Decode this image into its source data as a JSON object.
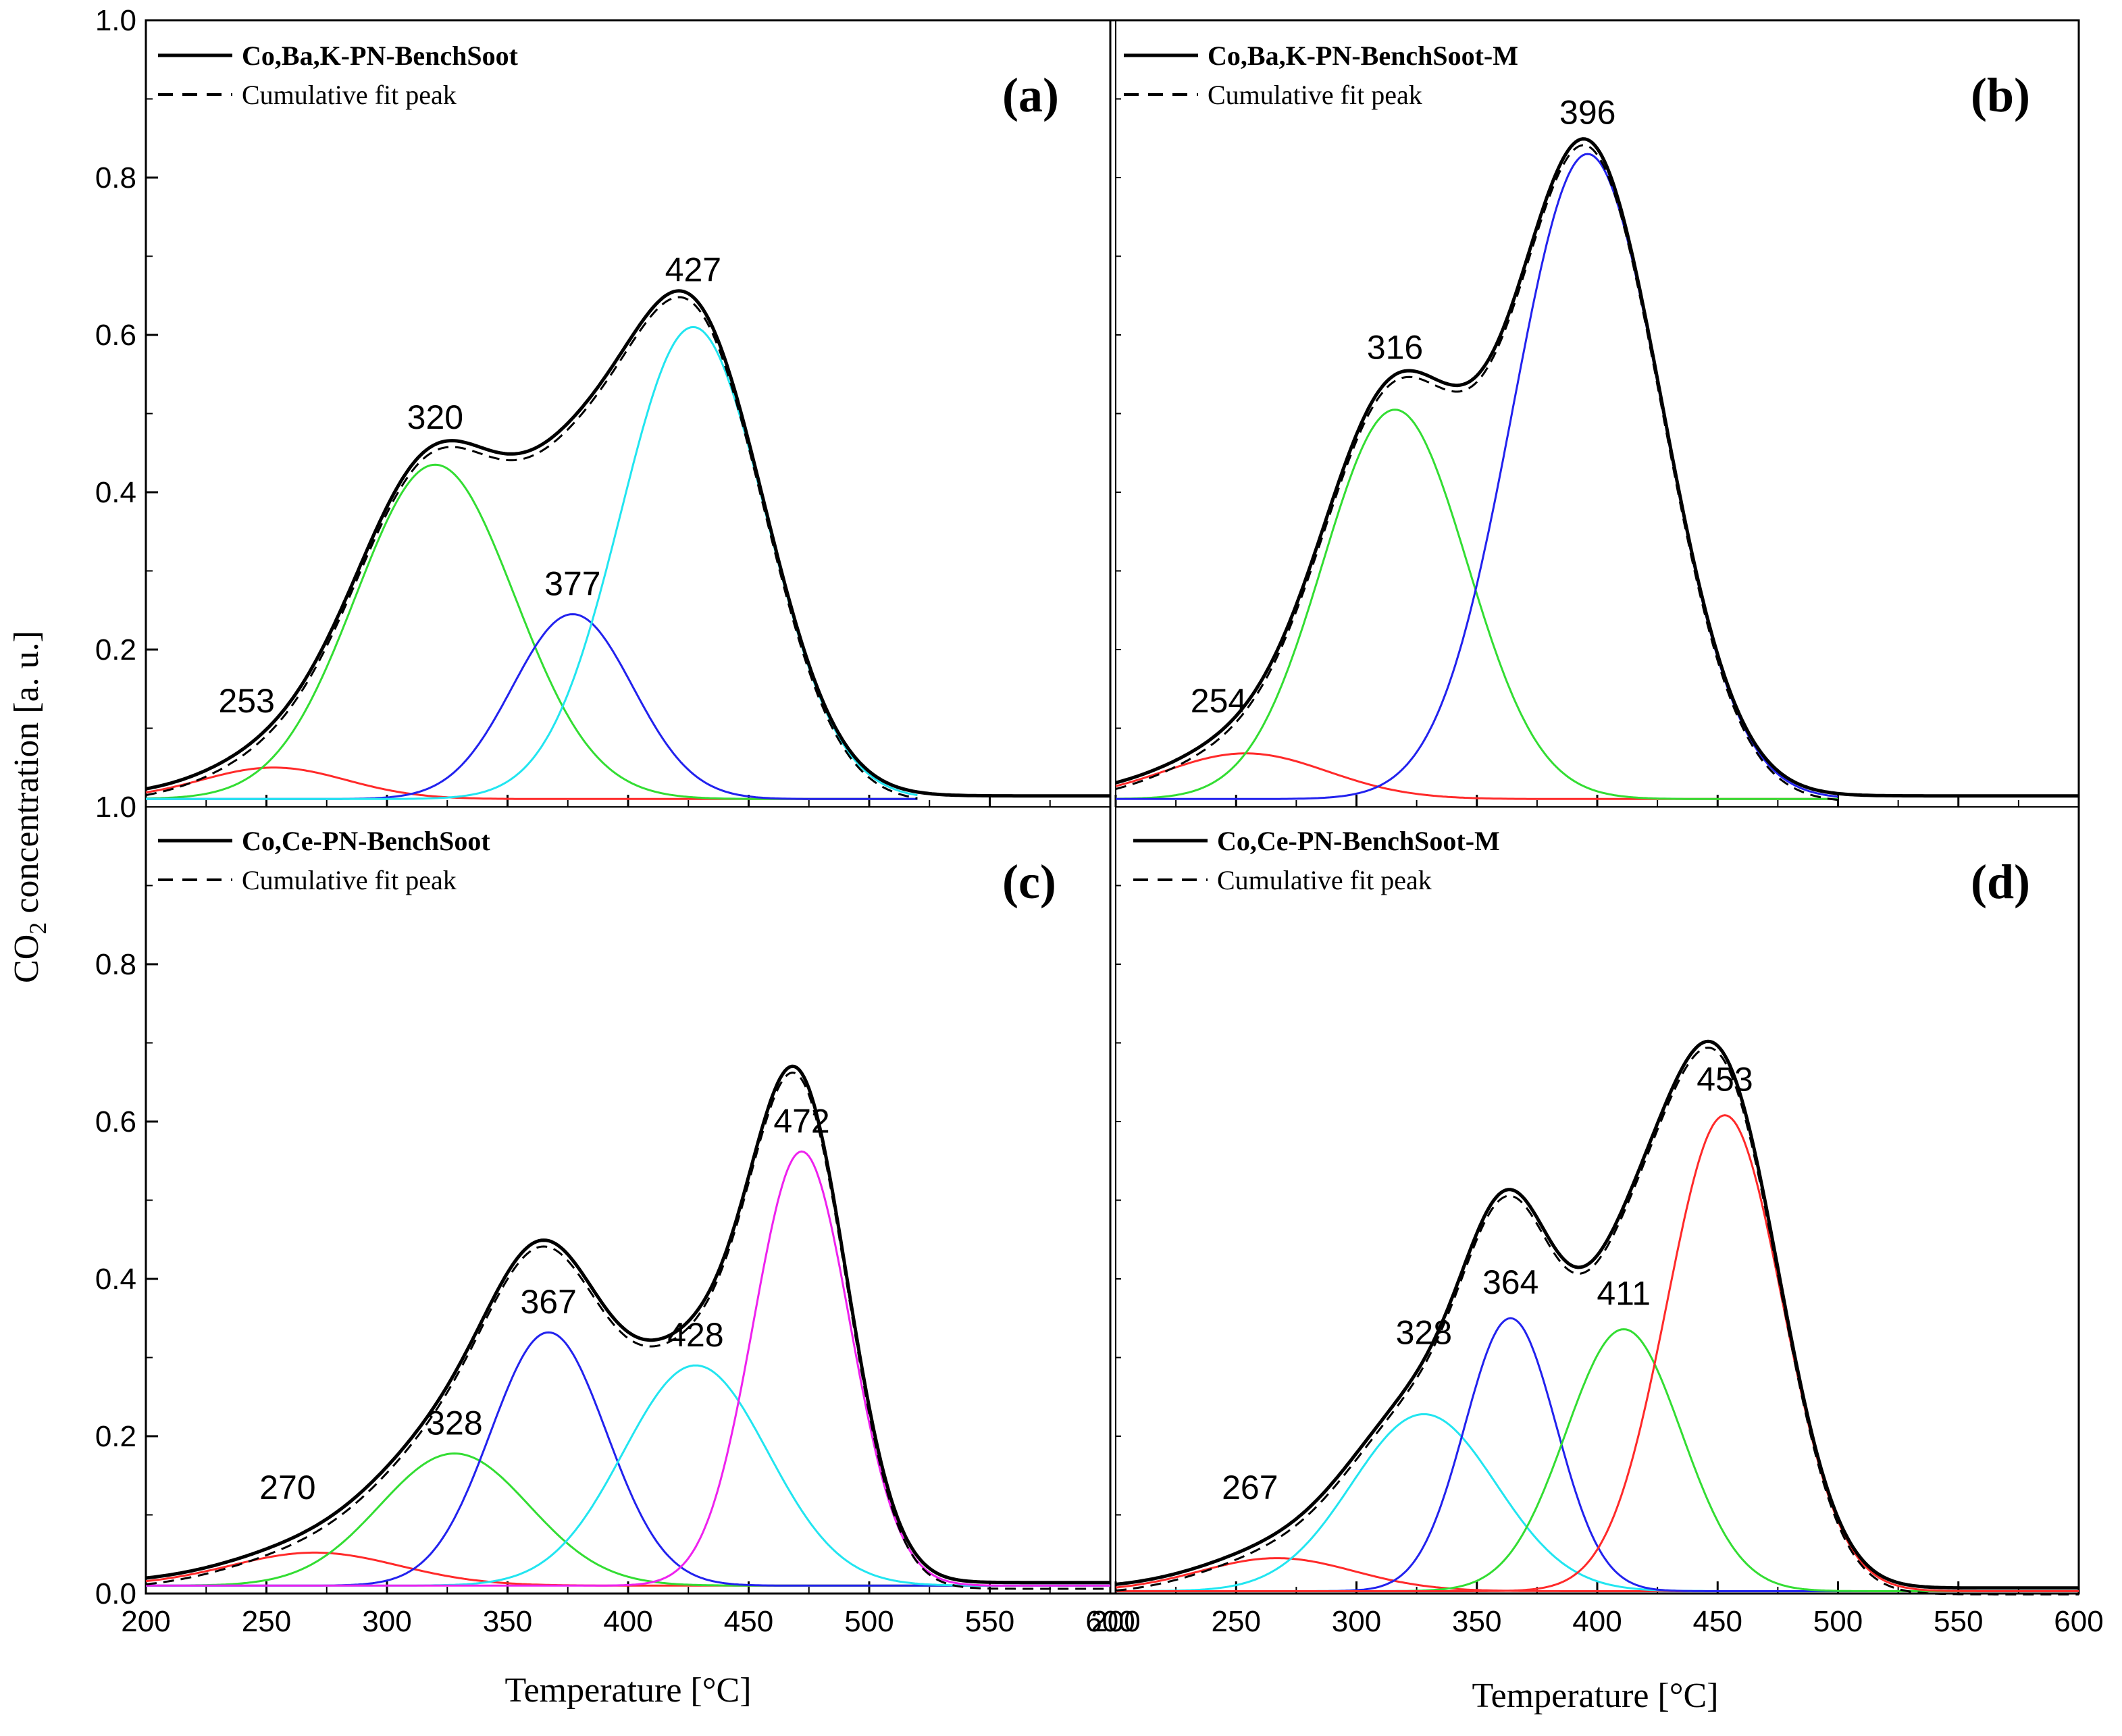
{
  "chart_data": {
    "type": "line",
    "ylabel_main": "CO",
    "ylabel_sub": "2",
    "ylabel_rest": " concentration [a. u.]",
    "xlabel": "Temperature [°C]",
    "xlim": [
      200,
      600
    ],
    "ylim": [
      0.0,
      1.0
    ],
    "xticks": [
      "200",
      "250",
      "300",
      "350",
      "400",
      "450",
      "500",
      "550",
      "600"
    ],
    "yticks_left": [
      "0.0",
      "0.2",
      "0.4",
      "0.6",
      "0.8",
      "1.0"
    ],
    "ytick_top_left_panel_bottom": "1.0",
    "colors": {
      "red": "#ff2a2a",
      "green": "#33dd33",
      "blue": "#2222ee",
      "cyan": "#22e5f0",
      "magenta": "#ee22ee",
      "black": "#000000"
    },
    "panels": [
      {
        "id": "a",
        "label": "(a)",
        "legend": [
          "Co,Ba,K-PN-BenchSoot",
          "Cumulative fit peak"
        ],
        "baseline": 0.01,
        "peaks": [
          {
            "center": 253,
            "height": 0.04,
            "sigma": 30,
            "color": "red",
            "label": "253"
          },
          {
            "center": 320,
            "height": 0.425,
            "sigma": 33,
            "color": "green",
            "label": "320"
          },
          {
            "center": 377,
            "height": 0.235,
            "sigma": 25,
            "color": "blue",
            "label": "377"
          },
          {
            "center": 427,
            "height": 0.6,
            "sigma": 30,
            "color": "cyan",
            "label": "427"
          }
        ],
        "fit_range": [
          200,
          520
        ],
        "tail_end": 600
      },
      {
        "id": "b",
        "label": "(b)",
        "legend": [
          "Co,Ba,K-PN-BenchSoot-M",
          "Cumulative fit peak"
        ],
        "baseline": 0.01,
        "peaks": [
          {
            "center": 254,
            "height": 0.058,
            "sigma": 34,
            "color": "red",
            "label": "254"
          },
          {
            "center": 316,
            "height": 0.495,
            "sigma": 30,
            "color": "green",
            "label": "316"
          },
          {
            "center": 396,
            "height": 0.82,
            "sigma": 31,
            "color": "blue",
            "label": "396"
          }
        ],
        "fit_range": [
          200,
          500
        ],
        "tail_end": 600
      },
      {
        "id": "c",
        "label": "(c)",
        "legend": [
          "Co,Ce-PN-BenchSoot",
          "Cumulative fit peak"
        ],
        "baseline": 0.01,
        "peaks": [
          {
            "center": 270,
            "height": 0.042,
            "sigma": 35,
            "color": "red",
            "label": "270"
          },
          {
            "center": 328,
            "height": 0.168,
            "sigma": 31,
            "color": "green",
            "label": "328"
          },
          {
            "center": 367,
            "height": 0.322,
            "sigma": 24,
            "color": "blue",
            "label": "367"
          },
          {
            "center": 428,
            "height": 0.28,
            "sigma": 30,
            "color": "cyan",
            "label": "428"
          },
          {
            "center": 472,
            "height": 0.552,
            "sigma": 20,
            "color": "magenta",
            "label": "472"
          }
        ],
        "fit_range": [
          200,
          600
        ],
        "tail_end": 600
      },
      {
        "id": "d",
        "label": "(d)",
        "legend": [
          "Co,Ce-PN-BenchSoot-M",
          "Cumulative fit peak"
        ],
        "baseline": 0.003,
        "peaks": [
          {
            "center": 267,
            "height": 0.042,
            "sigma": 32,
            "color": "red",
            "label": "267"
          },
          {
            "center": 328,
            "height": 0.225,
            "sigma": 30,
            "color": "cyan",
            "label": "328"
          },
          {
            "center": 364,
            "height": 0.347,
            "sigma": 19,
            "color": "blue",
            "label": "364"
          },
          {
            "center": 411,
            "height": 0.333,
            "sigma": 24,
            "color": "green",
            "label": "411"
          },
          {
            "center": 453,
            "height": 0.605,
            "sigma": 24,
            "color": "red",
            "label": "453"
          }
        ],
        "fit_range": [
          200,
          600
        ],
        "tail_end": 600
      }
    ]
  }
}
